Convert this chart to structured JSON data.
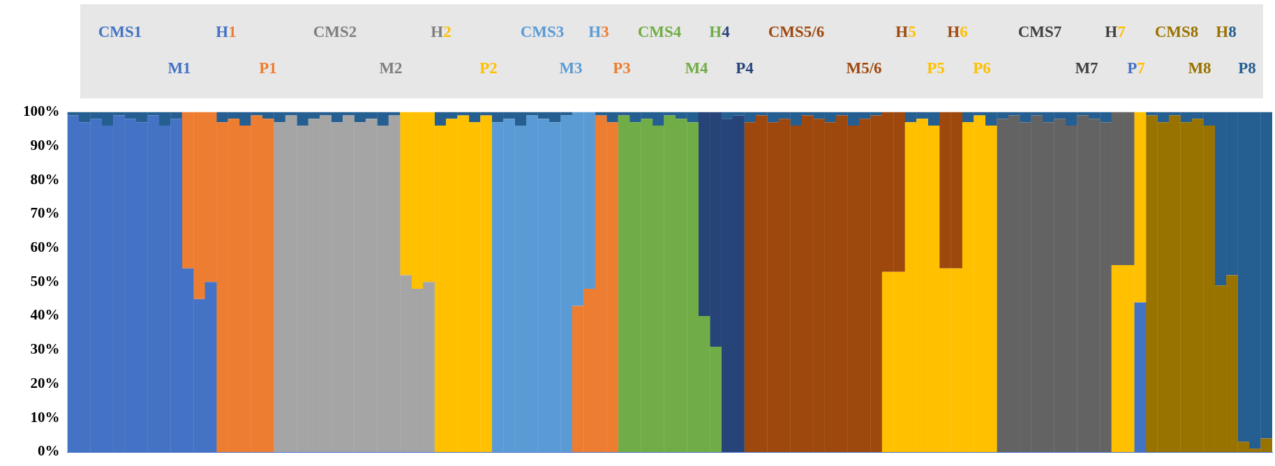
{
  "chart_data": {
    "type": "bar",
    "stacked": true,
    "tick_labels": "y",
    "categories": [
      null,
      null,
      null,
      null,
      null,
      null,
      null,
      null,
      null,
      null,
      null,
      null,
      null,
      null,
      null,
      null,
      null,
      null,
      null,
      null,
      null,
      null,
      null,
      null,
      null,
      null,
      null,
      null,
      null,
      null,
      null,
      null,
      null,
      null,
      null,
      null,
      null,
      null,
      null,
      null,
      null,
      null,
      null,
      null,
      null,
      null,
      null,
      null,
      null,
      null,
      null,
      null,
      null,
      null,
      null,
      null,
      null,
      null,
      null,
      null,
      null,
      null,
      null,
      null,
      null,
      null,
      null,
      null,
      null,
      null,
      null,
      null,
      null,
      null,
      null,
      null,
      null,
      null,
      null,
      null,
      null,
      null,
      null,
      null,
      null,
      null,
      null,
      null,
      null,
      null,
      null,
      null,
      null,
      null,
      null,
      null,
      null,
      null,
      null,
      null,
      null,
      null,
      null,
      null,
      null
    ],
    "ylim": [
      0,
      100
    ],
    "yticks": [
      {
        "value": 0,
        "label": "0%"
      },
      {
        "value": 10,
        "label": "10%"
      },
      {
        "value": 20,
        "label": "20%"
      },
      {
        "value": 30,
        "label": "30%"
      },
      {
        "value": 40,
        "label": "40%"
      },
      {
        "value": 50,
        "label": "50%"
      },
      {
        "value": 60,
        "label": "60%"
      },
      {
        "value": 70,
        "label": "70%"
      },
      {
        "value": 80,
        "label": "80%"
      },
      {
        "value": 90,
        "label": "90%"
      },
      {
        "value": 100,
        "label": "100%"
      }
    ],
    "annotations": [
      "CMS1",
      "H1",
      "CMS2",
      "H2",
      "CMS3",
      "H3",
      "CMS4",
      "H4",
      "CMS5/6",
      "H5",
      "H6",
      "CMS7",
      "H7",
      "CMS8",
      "H8",
      "M1",
      "P1",
      "M2",
      "P2",
      "M3",
      "P3",
      "M4",
      "P4",
      "M5/6",
      "P5",
      "P6",
      "M7",
      "P7",
      "M8",
      "P8"
    ],
    "series": [
      {
        "color": "#4472c4",
        "values": [
          99,
          97,
          98,
          96,
          99,
          98,
          97,
          99,
          96,
          98,
          54,
          45,
          50,
          0,
          0,
          0,
          0,
          0,
          0,
          0,
          0,
          0,
          0,
          0,
          0,
          0,
          0,
          0,
          0,
          0,
          0,
          0,
          0,
          0,
          0,
          0,
          0,
          0,
          0,
          0,
          0,
          0,
          0,
          0,
          0,
          0,
          0,
          0,
          0,
          0,
          0,
          0,
          0,
          0,
          0,
          0,
          0,
          0,
          0,
          0,
          0,
          0,
          0,
          0,
          0,
          0,
          0,
          0,
          0,
          0,
          0,
          0,
          0,
          0,
          0,
          0,
          0,
          0,
          0,
          0,
          0,
          0,
          0,
          0,
          0,
          0,
          0,
          0,
          0,
          0,
          0,
          0,
          0,
          44,
          0,
          0,
          0,
          0,
          0,
          0,
          0,
          0,
          0,
          0,
          0
        ]
      },
      {
        "color": "#ed7d31",
        "values": [
          0,
          0,
          0,
          0,
          0,
          0,
          0,
          0,
          0,
          0,
          46,
          55,
          50,
          97,
          98,
          96,
          99,
          98,
          0,
          0,
          0,
          0,
          0,
          0,
          0,
          0,
          0,
          0,
          0,
          0,
          0,
          0,
          0,
          0,
          0,
          0,
          0,
          0,
          0,
          0,
          0,
          0,
          0,
          0,
          43,
          48,
          99,
          97,
          0,
          0,
          0,
          0,
          0,
          0,
          0,
          0,
          0,
          0,
          0,
          0,
          0,
          0,
          0,
          0,
          0,
          0,
          0,
          0,
          0,
          0,
          0,
          0,
          0,
          0,
          0,
          0,
          0,
          0,
          0,
          0,
          0,
          0,
          0,
          0,
          0,
          0,
          0,
          0,
          0,
          0,
          0,
          0,
          0,
          0,
          0,
          0,
          0,
          0,
          0,
          0,
          0,
          0,
          0,
          0,
          0
        ]
      },
      {
        "color": "#a5a5a5",
        "values": [
          0,
          0,
          0,
          0,
          0,
          0,
          0,
          0,
          0,
          0,
          0,
          0,
          0,
          0,
          0,
          0,
          0,
          0,
          97,
          99,
          96,
          98,
          99,
          97,
          99,
          97,
          98,
          96,
          99,
          52,
          48,
          50,
          0,
          0,
          0,
          0,
          0,
          0,
          0,
          0,
          0,
          0,
          0,
          0,
          0,
          0,
          0,
          0,
          0,
          0,
          0,
          0,
          0,
          0,
          0,
          0,
          0,
          0,
          0,
          0,
          0,
          0,
          0,
          0,
          0,
          0,
          0,
          0,
          0,
          0,
          0,
          0,
          0,
          0,
          0,
          0,
          0,
          0,
          0,
          0,
          0,
          0,
          0,
          0,
          0,
          0,
          0,
          0,
          0,
          0,
          0,
          0,
          0,
          0,
          0,
          0,
          0,
          0,
          0,
          0,
          0,
          0,
          0,
          0,
          0
        ]
      },
      {
        "color": "#ffc000",
        "values": [
          0,
          0,
          0,
          0,
          0,
          0,
          0,
          0,
          0,
          0,
          0,
          0,
          0,
          0,
          0,
          0,
          0,
          0,
          0,
          0,
          0,
          0,
          0,
          0,
          0,
          0,
          0,
          0,
          0,
          48,
          52,
          50,
          96,
          98,
          99,
          97,
          99,
          0,
          0,
          0,
          0,
          0,
          0,
          0,
          0,
          0,
          0,
          0,
          0,
          0,
          0,
          0,
          0,
          0,
          0,
          0,
          0,
          0,
          0,
          0,
          0,
          0,
          0,
          0,
          0,
          0,
          0,
          0,
          0,
          0,
          0,
          53,
          53,
          97,
          98,
          96,
          54,
          54,
          97,
          99,
          96,
          0,
          0,
          0,
          0,
          0,
          0,
          0,
          0,
          0,
          0,
          55,
          55,
          56,
          0,
          0,
          0,
          0,
          0,
          0,
          0,
          0,
          0,
          0,
          0
        ]
      },
      {
        "color": "#5b9bd5",
        "values": [
          0,
          0,
          0,
          0,
          0,
          0,
          0,
          0,
          0,
          0,
          0,
          0,
          0,
          0,
          0,
          0,
          0,
          0,
          0,
          0,
          0,
          0,
          0,
          0,
          0,
          0,
          0,
          0,
          0,
          0,
          0,
          0,
          0,
          0,
          0,
          0,
          0,
          97,
          98,
          96,
          99,
          98,
          97,
          99,
          57,
          52,
          0,
          0,
          0,
          0,
          0,
          0,
          0,
          0,
          0,
          0,
          0,
          0,
          0,
          0,
          0,
          0,
          0,
          0,
          0,
          0,
          0,
          0,
          0,
          0,
          0,
          0,
          0,
          0,
          0,
          0,
          0,
          0,
          0,
          0,
          0,
          0,
          0,
          0,
          0,
          0,
          0,
          0,
          0,
          0,
          0,
          0,
          0,
          0,
          0,
          0,
          0,
          0,
          0,
          0,
          0,
          0,
          0,
          0,
          0
        ]
      },
      {
        "color": "#70ad47",
        "values": [
          0,
          0,
          0,
          0,
          0,
          0,
          0,
          0,
          0,
          0,
          0,
          0,
          0,
          0,
          0,
          0,
          0,
          0,
          0,
          0,
          0,
          0,
          0,
          0,
          0,
          0,
          0,
          0,
          0,
          0,
          0,
          0,
          0,
          0,
          0,
          0,
          0,
          0,
          0,
          0,
          0,
          0,
          0,
          0,
          0,
          0,
          0,
          0,
          99,
          97,
          98,
          96,
          99,
          98,
          97,
          40,
          31,
          0,
          0,
          0,
          0,
          0,
          0,
          0,
          0,
          0,
          0,
          0,
          0,
          0,
          0,
          0,
          0,
          0,
          0,
          0,
          0,
          0,
          0,
          0,
          0,
          0,
          0,
          0,
          0,
          0,
          0,
          0,
          0,
          0,
          0,
          0,
          0,
          0,
          0,
          0,
          0,
          0,
          0,
          0,
          0,
          0,
          0,
          0,
          0
        ]
      },
      {
        "color": "#264478",
        "values": [
          0,
          0,
          0,
          0,
          0,
          0,
          0,
          0,
          0,
          0,
          0,
          0,
          0,
          0,
          0,
          0,
          0,
          0,
          0,
          0,
          0,
          0,
          0,
          0,
          0,
          0,
          0,
          0,
          0,
          0,
          0,
          0,
          0,
          0,
          0,
          0,
          0,
          0,
          0,
          0,
          0,
          0,
          0,
          0,
          0,
          0,
          0,
          0,
          0,
          0,
          0,
          0,
          0,
          0,
          0,
          60,
          69,
          98,
          99,
          0,
          0,
          0,
          0,
          0,
          0,
          0,
          0,
          0,
          0,
          0,
          0,
          0,
          0,
          0,
          0,
          0,
          0,
          0,
          0,
          0,
          0,
          0,
          0,
          0,
          0,
          0,
          0,
          0,
          0,
          0,
          0,
          0,
          0,
          0,
          0,
          0,
          0,
          0,
          0,
          0,
          0,
          0,
          0,
          0,
          0
        ]
      },
      {
        "color": "#9e480e",
        "values": [
          0,
          0,
          0,
          0,
          0,
          0,
          0,
          0,
          0,
          0,
          0,
          0,
          0,
          0,
          0,
          0,
          0,
          0,
          0,
          0,
          0,
          0,
          0,
          0,
          0,
          0,
          0,
          0,
          0,
          0,
          0,
          0,
          0,
          0,
          0,
          0,
          0,
          0,
          0,
          0,
          0,
          0,
          0,
          0,
          0,
          0,
          0,
          0,
          0,
          0,
          0,
          0,
          0,
          0,
          0,
          0,
          0,
          0,
          0,
          97,
          99,
          97,
          98,
          96,
          99,
          98,
          97,
          99,
          96,
          98,
          99,
          47,
          47,
          0,
          0,
          0,
          46,
          46,
          0,
          0,
          0,
          0,
          0,
          0,
          0,
          0,
          0,
          0,
          0,
          0,
          0,
          0,
          0,
          0,
          0,
          0,
          0,
          0,
          0,
          0,
          0,
          0,
          0,
          0,
          0
        ]
      },
      {
        "color": "#636363",
        "values": [
          0,
          0,
          0,
          0,
          0,
          0,
          0,
          0,
          0,
          0,
          0,
          0,
          0,
          0,
          0,
          0,
          0,
          0,
          0,
          0,
          0,
          0,
          0,
          0,
          0,
          0,
          0,
          0,
          0,
          0,
          0,
          0,
          0,
          0,
          0,
          0,
          0,
          0,
          0,
          0,
          0,
          0,
          0,
          0,
          0,
          0,
          0,
          0,
          0,
          0,
          0,
          0,
          0,
          0,
          0,
          0,
          0,
          0,
          0,
          0,
          0,
          0,
          0,
          0,
          0,
          0,
          0,
          0,
          0,
          0,
          0,
          0,
          0,
          0,
          0,
          0,
          0,
          0,
          0,
          0,
          0,
          98,
          99,
          97,
          99,
          97,
          98,
          96,
          99,
          98,
          97,
          45,
          45,
          0,
          0,
          0,
          0,
          0,
          0,
          0,
          0,
          0,
          0,
          0,
          0
        ]
      },
      {
        "color": "#997300",
        "values": [
          0,
          0,
          0,
          0,
          0,
          0,
          0,
          0,
          0,
          0,
          0,
          0,
          0,
          0,
          0,
          0,
          0,
          0,
          0,
          0,
          0,
          0,
          0,
          0,
          0,
          0,
          0,
          0,
          0,
          0,
          0,
          0,
          0,
          0,
          0,
          0,
          0,
          0,
          0,
          0,
          0,
          0,
          0,
          0,
          0,
          0,
          0,
          0,
          0,
          0,
          0,
          0,
          0,
          0,
          0,
          0,
          0,
          0,
          0,
          0,
          0,
          0,
          0,
          0,
          0,
          0,
          0,
          0,
          0,
          0,
          0,
          0,
          0,
          0,
          0,
          0,
          0,
          0,
          0,
          0,
          0,
          0,
          0,
          0,
          0,
          0,
          0,
          0,
          0,
          0,
          0,
          0,
          0,
          0,
          99,
          97,
          99,
          97,
          98,
          96,
          49,
          52,
          3,
          1,
          4
        ]
      },
      {
        "color": "#255e91",
        "values": [
          1,
          3,
          2,
          4,
          1,
          2,
          3,
          1,
          4,
          2,
          0,
          0,
          0,
          3,
          2,
          4,
          1,
          2,
          3,
          1,
          4,
          2,
          1,
          3,
          1,
          3,
          2,
          4,
          1,
          0,
          0,
          0,
          4,
          2,
          1,
          3,
          1,
          3,
          2,
          4,
          1,
          2,
          3,
          1,
          0,
          0,
          1,
          3,
          1,
          3,
          2,
          4,
          1,
          2,
          3,
          0,
          0,
          2,
          1,
          3,
          1,
          3,
          2,
          4,
          1,
          2,
          3,
          1,
          4,
          2,
          1,
          0,
          0,
          3,
          2,
          4,
          0,
          0,
          3,
          1,
          4,
          2,
          1,
          3,
          1,
          3,
          2,
          4,
          1,
          2,
          3,
          0,
          0,
          0,
          1,
          3,
          1,
          3,
          2,
          4,
          51,
          48,
          97,
          99,
          96
        ]
      }
    ]
  }
}
